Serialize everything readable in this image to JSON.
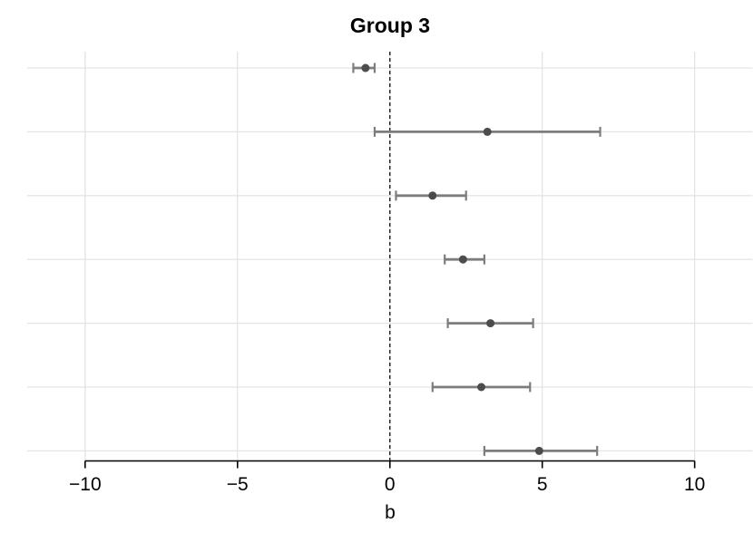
{
  "chart_data": {
    "type": "scatter",
    "subtype": "coefplot-horizontal-errorbar",
    "title": "Group 3",
    "xlabel": "b",
    "ylabel": "",
    "xlim": [
      -11.9,
      11.9
    ],
    "x_ticks": [
      -10,
      -5,
      0,
      5,
      10
    ],
    "x_tick_labels": [
      "−10",
      "−5",
      "0",
      "5",
      "10"
    ],
    "grid": "horizontal row gridlines and vertical tick gridlines, light gray",
    "legend": "none",
    "reference_line_x": 0,
    "reference_line_style": "dashed",
    "n_rows": 7,
    "rows": [
      {
        "estimate": -0.8,
        "ci_low": -1.2,
        "ci_high": -0.5
      },
      {
        "estimate": 3.2,
        "ci_low": -0.5,
        "ci_high": 6.9
      },
      {
        "estimate": 1.4,
        "ci_low": 0.2,
        "ci_high": 2.5
      },
      {
        "estimate": 2.4,
        "ci_low": 1.8,
        "ci_high": 3.1
      },
      {
        "estimate": 3.3,
        "ci_low": 1.9,
        "ci_high": 4.7
      },
      {
        "estimate": 3.0,
        "ci_low": 1.4,
        "ci_high": 4.6
      },
      {
        "estimate": 4.9,
        "ci_low": 3.1,
        "ci_high": 6.8
      }
    ],
    "colors": {
      "background": "#ffffff",
      "gridline": "#e4e4e4",
      "ci_line": "#7d7d7d",
      "marker": "#4c4c4c",
      "reference_line": "#1a1a1a",
      "axis_line": "#000000",
      "text": "#000000"
    }
  }
}
